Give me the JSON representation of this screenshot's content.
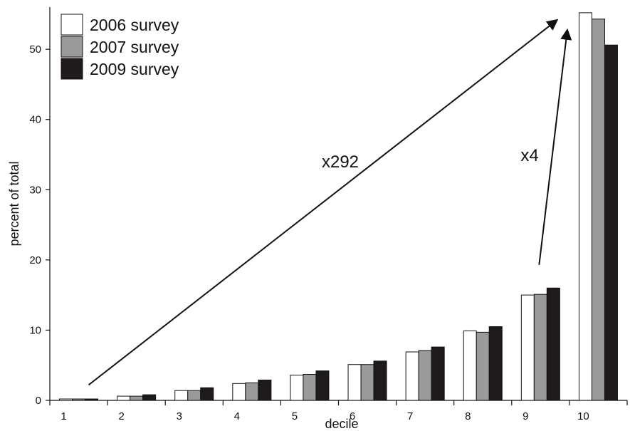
{
  "chart_data": {
    "type": "bar",
    "title": "",
    "xlabel": "decile",
    "ylabel": "percent of total",
    "categories": [
      "1",
      "2",
      "3",
      "4",
      "5",
      "6",
      "7",
      "8",
      "9",
      "10"
    ],
    "series": [
      {
        "name": "2006 survey",
        "color": "#ffffff",
        "values": [
          0.2,
          0.6,
          1.4,
          2.4,
          3.6,
          5.1,
          6.9,
          9.9,
          15.0,
          55.2
        ]
      },
      {
        "name": "2007 survey",
        "color": "#9a9a9a",
        "values": [
          0.2,
          0.6,
          1.4,
          2.5,
          3.7,
          5.1,
          7.1,
          9.7,
          15.1,
          54.3
        ]
      },
      {
        "name": "2009 survey",
        "color": "#1f1a1b",
        "values": [
          0.2,
          0.8,
          1.8,
          2.9,
          4.2,
          5.6,
          7.6,
          10.5,
          16.0,
          50.6
        ]
      }
    ],
    "ylim": [
      0,
      55
    ],
    "yticks": [
      0,
      10,
      20,
      30,
      40,
      50
    ],
    "grid": false,
    "legend_position": "top-left",
    "annotations": [
      {
        "label": "x292",
        "from": {
          "category": "1",
          "value": 2.2
        },
        "to": {
          "category": "10",
          "value": 54.0
        }
      },
      {
        "label": "x4",
        "from": {
          "category": "9",
          "value": 19.5
        },
        "to": {
          "category": "10",
          "value": 52.0
        }
      }
    ]
  }
}
